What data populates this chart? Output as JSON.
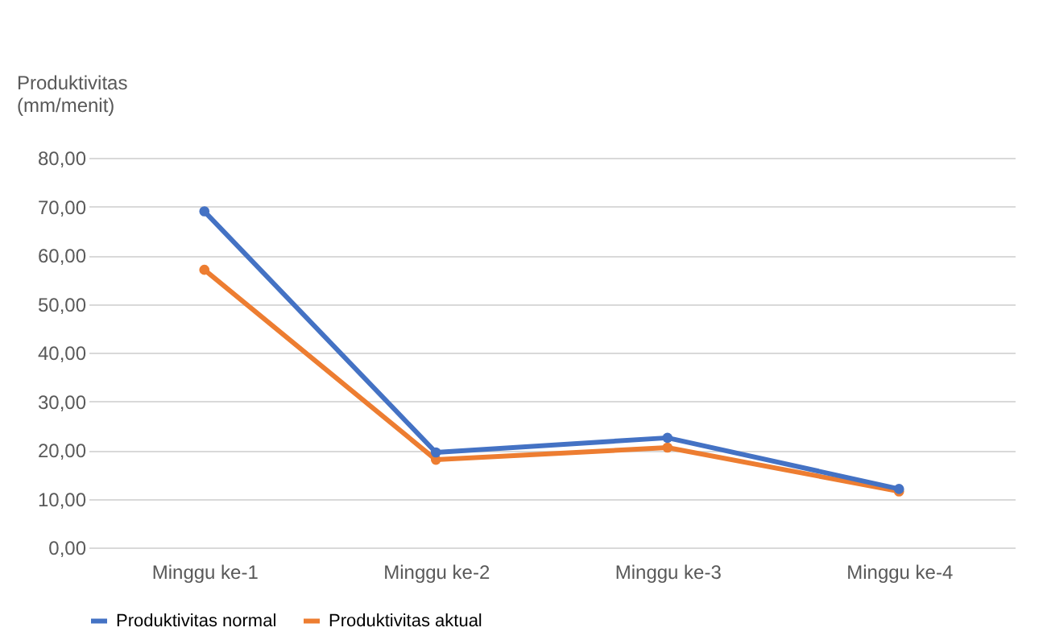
{
  "chart_data": {
    "type": "line",
    "ylabel": "Produktivitas (mm/menit)",
    "categories": [
      "Minggu ke-1",
      "Minggu ke-2",
      "Minggu ke-3",
      "Minggu ke-4"
    ],
    "series": [
      {
        "name": "Produktivitas normal",
        "color": "#4472c4",
        "values": [
          69,
          19.5,
          22.5,
          12
        ]
      },
      {
        "name": "Produktivitas aktual",
        "color": "#ed7d31",
        "values": [
          57,
          18,
          20.5,
          11.5
        ]
      }
    ],
    "ylim": [
      0,
      80
    ],
    "yticks": [
      {
        "value": 0,
        "label": "0,00"
      },
      {
        "value": 10,
        "label": "10,00"
      },
      {
        "value": 20,
        "label": "20,00"
      },
      {
        "value": 30,
        "label": "30,00"
      },
      {
        "value": 40,
        "label": "40,00"
      },
      {
        "value": 50,
        "label": "50,00"
      },
      {
        "value": 60,
        "label": "60,00"
      },
      {
        "value": 70,
        "label": "70,00"
      },
      {
        "value": 80,
        "label": "80,00"
      }
    ],
    "grid": "y",
    "legend": "bottom",
    "marker": "circle",
    "line_style": "solid"
  }
}
